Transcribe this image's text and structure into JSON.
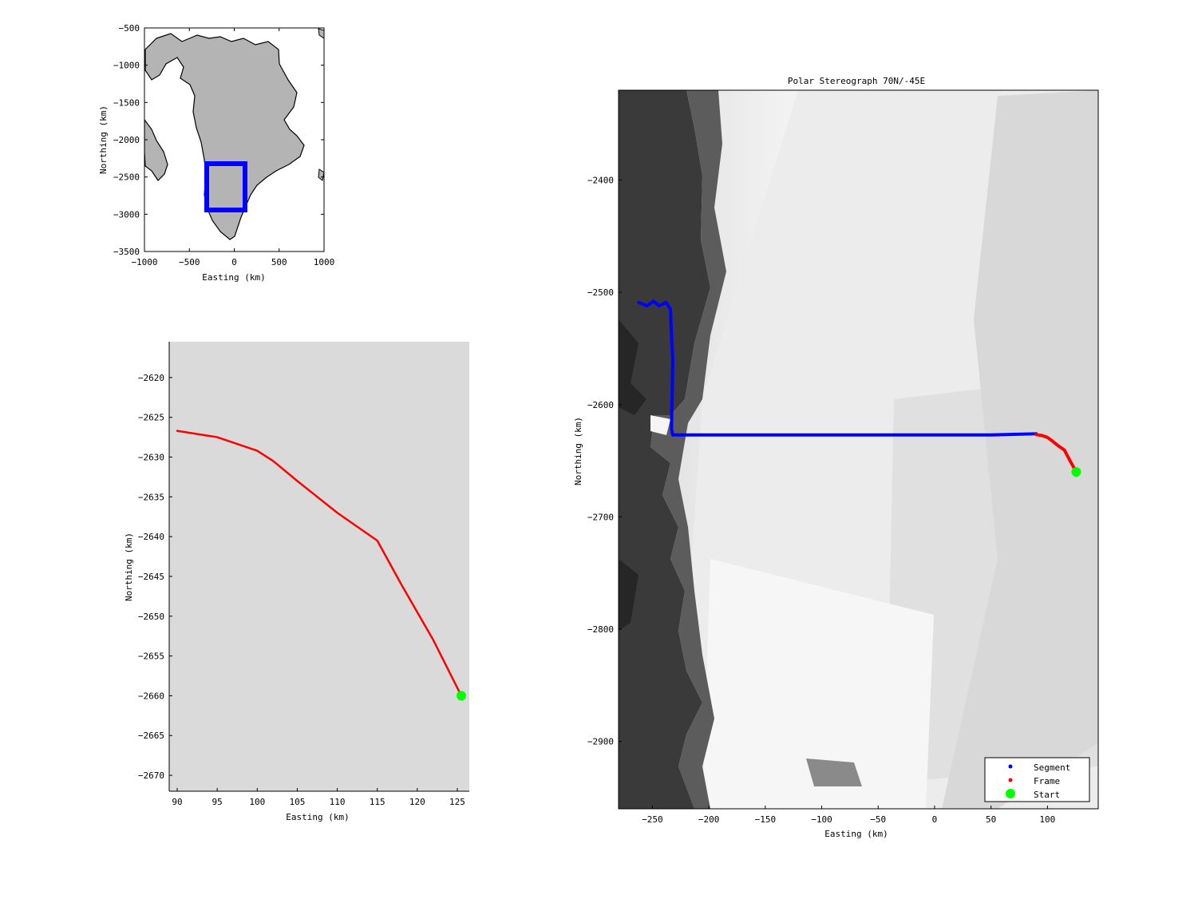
{
  "chart_data": [
    {
      "type": "scatter",
      "title": "",
      "xlabel": "Easting (km)",
      "ylabel": "Northing (km)",
      "xlim": [
        -1000,
        1000
      ],
      "ylim": [
        -3500,
        -500
      ],
      "xticks": [
        -1000,
        -500,
        0,
        500,
        1000
      ],
      "yticks": [
        -500,
        -1000,
        -1500,
        -2000,
        -2500,
        -3000,
        -3500
      ],
      "background": "map of Greenland (land in gray)",
      "land_color": "#b4b4b4",
      "region_box": {
        "x": [
          -300,
          150
        ],
        "y": [
          -3000,
          -2350
        ]
      },
      "region_box_color": "#0000ff"
    },
    {
      "type": "scatter",
      "title": "",
      "xlabel": "Easting (km)",
      "ylabel": "Northing (km)",
      "xlim": [
        89,
        126.5
      ],
      "ylim": [
        -2672,
        -2615.5
      ],
      "xticks": [
        90,
        95,
        100,
        105,
        110,
        115,
        120,
        125
      ],
      "yticks": [
        -2620,
        -2625,
        -2630,
        -2635,
        -2640,
        -2645,
        -2650,
        -2655,
        -2660,
        -2665,
        -2670
      ],
      "background_color": "#dadada",
      "series": [
        {
          "name": "Frame",
          "color": "#ff0000",
          "marker": "dot",
          "x": [
            90,
            95,
            100,
            102,
            105,
            110,
            115,
            118,
            122,
            125.5
          ],
          "y": [
            -2626.7,
            -2627.5,
            -2629.2,
            -2630.5,
            -2633,
            -2637,
            -2640.5,
            -2646,
            -2653,
            -2660
          ]
        },
        {
          "name": "Start",
          "color": "#00ff00",
          "marker": "star",
          "x": [
            125.5
          ],
          "y": [
            -2660
          ]
        }
      ]
    },
    {
      "type": "scatter",
      "title": "Polar Stereograph 70N/-45E",
      "xlabel": "Easting (km)",
      "ylabel": "Northing (km)",
      "xlim": [
        -280,
        145
      ],
      "ylim": [
        -2960,
        -2320
      ],
      "xticks": [
        -250,
        -200,
        -150,
        -100,
        -50,
        0,
        50,
        100
      ],
      "yticks": [
        -2400,
        -2500,
        -2600,
        -2700,
        -2800,
        -2900
      ],
      "background": "satellite image mosaic (grayscale)",
      "legend": "bottom-right",
      "series": [
        {
          "name": "Segment",
          "color": "#0000ff",
          "marker": "dot",
          "x": [
            -262,
            -255,
            -249,
            -244,
            -238,
            -234,
            -233,
            -232,
            -232.5,
            -233,
            -233,
            -232,
            -230,
            -200,
            -150,
            -100,
            -50,
            0,
            50,
            90
          ],
          "y": [
            -2509,
            -2512,
            -2508,
            -2512,
            -2509,
            -2515,
            -2540,
            -2560,
            -2590,
            -2615,
            -2622,
            -2627,
            -2627,
            -2627,
            -2627,
            -2627,
            -2627,
            -2627,
            -2627,
            -2626
          ]
        },
        {
          "name": "Frame",
          "color": "#ff0000",
          "marker": "dot",
          "x": [
            90,
            95,
            100,
            105,
            110,
            115,
            120,
            125.5
          ],
          "y": [
            -2626.7,
            -2627.5,
            -2629.2,
            -2633,
            -2637,
            -2640.5,
            -2650,
            -2660
          ]
        },
        {
          "name": "Start",
          "color": "#00ff00",
          "marker": "star",
          "x": [
            125.5
          ],
          "y": [
            -2660
          ]
        }
      ]
    }
  ]
}
